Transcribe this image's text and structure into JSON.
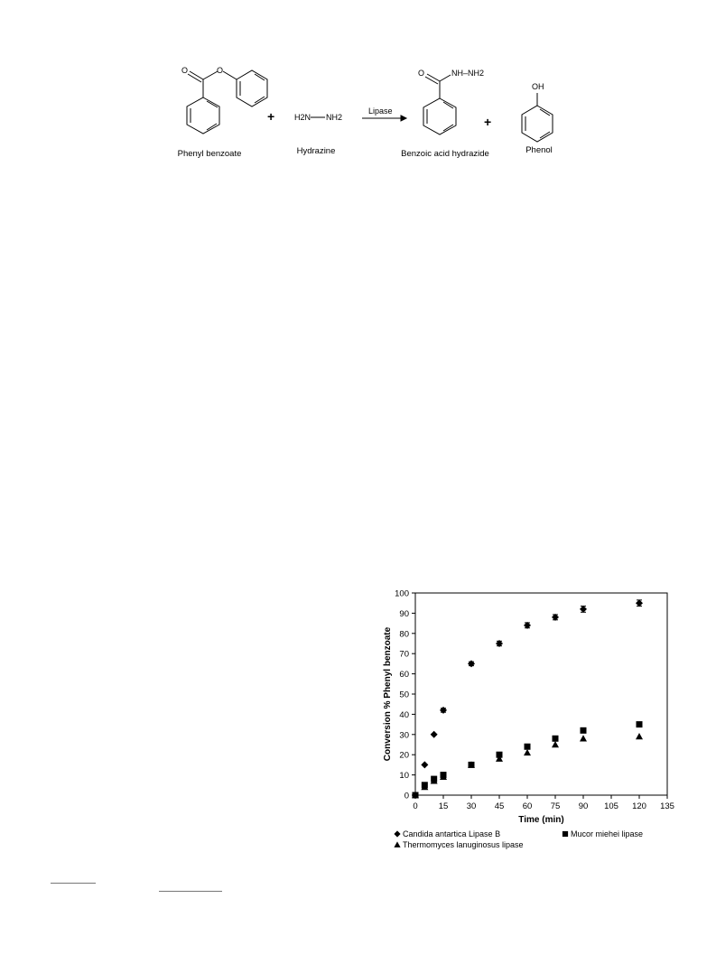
{
  "scheme": {
    "reactants": [
      {
        "name": "Phenyl benzoate"
      },
      {
        "name": "Hydrazine"
      }
    ],
    "products": [
      {
        "name": "Benzoic acid hydrazide"
      },
      {
        "name": "Phenol"
      }
    ],
    "plus_sign": "+",
    "arrow_label": "Lipase",
    "atoms": {
      "ester_O_carbonyl": "O",
      "ester_O_link": "O",
      "hydrazine_left": "H2N",
      "hydrazine_right": "NH2",
      "hydrazide_O": "O",
      "hydrazide_chain": "NH–NH2",
      "phenol_OH": "OH"
    }
  },
  "chart_data": {
    "type": "scatter",
    "title": "",
    "xlabel": "Time (min)",
    "ylabel": "Conversion % Phenyl benzoate",
    "xlim": [
      0,
      135
    ],
    "ylim": [
      0,
      100
    ],
    "xticks": [
      0,
      15,
      30,
      45,
      60,
      75,
      90,
      105,
      120,
      135
    ],
    "yticks": [
      0,
      10,
      20,
      30,
      40,
      50,
      60,
      70,
      80,
      90,
      100
    ],
    "grid": false,
    "legend_position": "bottom",
    "series": [
      {
        "name": "Candida antartica Lipase B",
        "marker": "diamond",
        "x": [
          0,
          5,
          10,
          15,
          30,
          45,
          60,
          75,
          90,
          120
        ],
        "y": [
          0,
          15,
          30,
          42,
          65,
          75,
          84,
          88,
          92,
          95
        ],
        "err": [
          0,
          0,
          0,
          1,
          1,
          1.2,
          1.3,
          1.3,
          1.5,
          1.5
        ]
      },
      {
        "name": "Mucor miehei lipase",
        "marker": "square",
        "x": [
          0,
          5,
          10,
          15,
          30,
          45,
          60,
          75,
          90,
          120
        ],
        "y": [
          0,
          5,
          8,
          10,
          15,
          20,
          24,
          28,
          32,
          35
        ],
        "err": [
          0,
          0.8,
          1,
          1,
          0.8,
          1,
          1,
          1,
          1,
          1
        ]
      },
      {
        "name": "Thermomyces lanuginosus lipase",
        "marker": "triangle",
        "x": [
          0,
          5,
          10,
          15,
          30,
          45,
          60,
          75,
          90,
          120
        ],
        "y": [
          0,
          4,
          7,
          9,
          15,
          18,
          21,
          25,
          28,
          29
        ],
        "err": [
          0,
          0,
          0,
          0,
          0,
          0,
          0,
          0,
          0,
          0
        ]
      }
    ],
    "colors": {
      "marker": "#000000",
      "axis": "#000000",
      "background": "#ffffff"
    }
  }
}
